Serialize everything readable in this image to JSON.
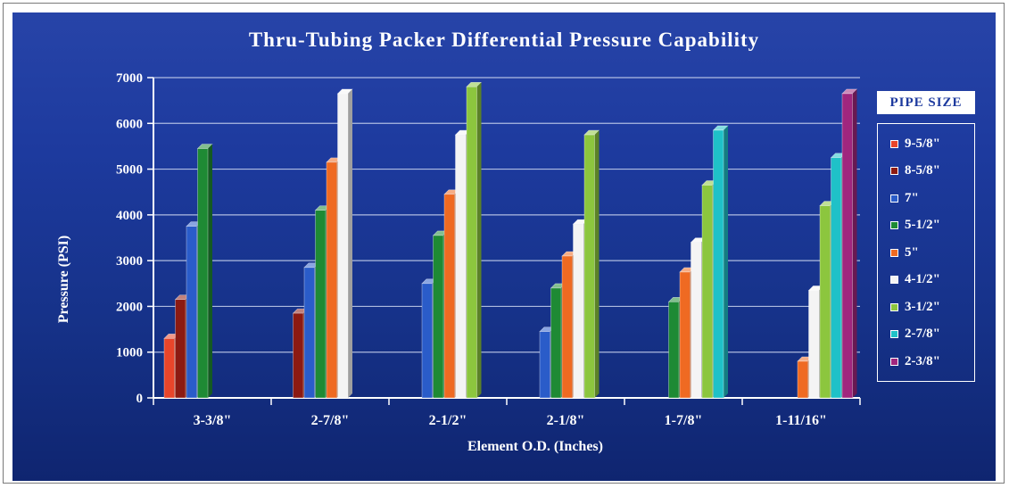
{
  "chart_data": {
    "type": "bar",
    "title": "Thru-Tubing Packer Differential Pressure Capability",
    "xlabel": "Element O.D. (Inches)",
    "ylabel": "Pressure (PSI)",
    "ylim": [
      0,
      7000
    ],
    "yticks": [
      "0",
      "1000",
      "2000",
      "3000",
      "4000",
      "5000",
      "6000",
      "7000"
    ],
    "grid": true,
    "legend_title": "PIPE SIZE",
    "legend_position": "right",
    "categories": [
      "3-3/8\"",
      "2-7/8\"",
      "2-1/2\"",
      "2-1/8\"",
      "1-7/8\"",
      "1-11/16\""
    ],
    "series": [
      {
        "name": "9-5/8\"",
        "color": "#e8452a",
        "values": [
          1300,
          null,
          null,
          null,
          null,
          null
        ]
      },
      {
        "name": "8-5/8\"",
        "color": "#8c1a12",
        "values": [
          2150,
          1850,
          null,
          null,
          null,
          null
        ]
      },
      {
        "name": "7\"",
        "color": "#2a5cc9",
        "values": [
          3750,
          2850,
          2500,
          1450,
          null,
          null
        ]
      },
      {
        "name": "5-1/2\"",
        "color": "#1e8a34",
        "values": [
          5450,
          4100,
          3550,
          2400,
          2100,
          null
        ]
      },
      {
        "name": "5\"",
        "color": "#ef6a22",
        "values": [
          null,
          5150,
          4450,
          3100,
          2750,
          800
        ]
      },
      {
        "name": "4-1/2\"",
        "color": "#f4f4f4",
        "values": [
          null,
          6650,
          5750,
          3800,
          3400,
          2350
        ]
      },
      {
        "name": "3-1/2\"",
        "color": "#8cc63e",
        "values": [
          null,
          null,
          6800,
          5750,
          4650,
          4200
        ]
      },
      {
        "name": "2-7/8\"",
        "color": "#1fc1c8",
        "values": [
          null,
          null,
          null,
          null,
          5850,
          5250
        ]
      },
      {
        "name": "2-3/8\"",
        "color": "#a0267e",
        "values": [
          null,
          null,
          null,
          null,
          null,
          6650
        ]
      }
    ]
  }
}
